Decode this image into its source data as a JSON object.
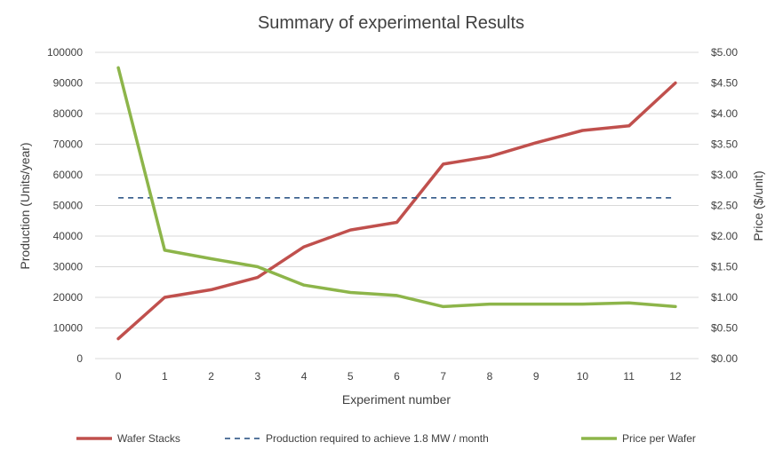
{
  "chart_data": {
    "type": "line",
    "title": "Summary of experimental Results",
    "xlabel": "Experiment number",
    "ylabel": "Production (Units/year)",
    "y2label": "Price ($/unit)",
    "x": [
      0,
      1,
      2,
      3,
      4,
      5,
      6,
      7,
      8,
      9,
      10,
      11,
      12
    ],
    "ylim": [
      0,
      100000
    ],
    "y2lim": [
      0,
      5
    ],
    "yticks": [
      "0",
      "10000",
      "20000",
      "30000",
      "40000",
      "50000",
      "60000",
      "70000",
      "80000",
      "90000",
      "100000"
    ],
    "y2ticks": [
      "$0.00",
      "$0.50",
      "$1.00",
      "$1.50",
      "$2.00",
      "$2.50",
      "$3.00",
      "$3.50",
      "$4.00",
      "$4.50",
      "$5.00"
    ],
    "grid": true,
    "legend_position": "bottom",
    "series": [
      {
        "name": "Wafer Stacks",
        "axis": "left",
        "style": "solid",
        "color": "#c0504d",
        "values": [
          6500,
          20000,
          22500,
          26500,
          36500,
          42000,
          44500,
          63500,
          66000,
          70500,
          74500,
          76000,
          90000
        ]
      },
      {
        "name": "Production required to achieve 1.8 MW / month",
        "axis": "left",
        "style": "dashed",
        "color": "#1f497d",
        "values": [
          52500,
          52500,
          52500,
          52500,
          52500,
          52500,
          52500,
          52500,
          52500,
          52500,
          52500,
          52500,
          52500
        ]
      },
      {
        "name": "Price per Wafer",
        "axis": "right",
        "style": "solid",
        "color": "#8db54a",
        "values": [
          4.75,
          1.77,
          1.63,
          1.5,
          1.2,
          1.08,
          1.03,
          0.85,
          0.89,
          0.89,
          0.89,
          0.91,
          0.85
        ]
      }
    ]
  }
}
